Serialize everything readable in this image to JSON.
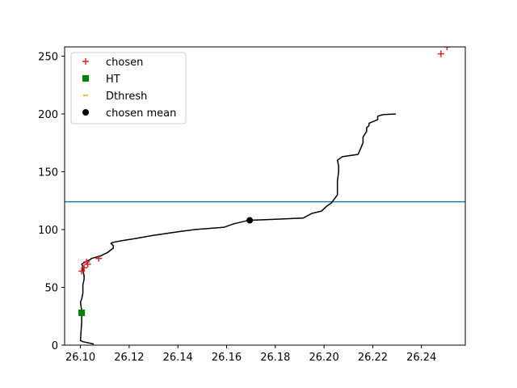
{
  "chart_data": {
    "type": "line",
    "title": "",
    "xlabel": "",
    "ylabel": "",
    "xlim": [
      26.0935,
      26.258
    ],
    "ylim": [
      0,
      258
    ],
    "xticks": [
      "26.10",
      "26.12",
      "26.14",
      "26.16",
      "26.18",
      "26.20",
      "26.22",
      "26.24"
    ],
    "xtick_values": [
      26.1,
      26.12,
      26.14,
      26.16,
      26.18,
      26.2,
      26.22,
      26.24
    ],
    "yticks": [
      "0",
      "50",
      "100",
      "150",
      "200",
      "250"
    ],
    "ytick_values": [
      0,
      50,
      100,
      150,
      200,
      250
    ],
    "grid": false,
    "legend_position": "upper-left",
    "legend": [
      {
        "label": "chosen",
        "marker": "plus",
        "color": "#d62728"
      },
      {
        "label": "HT",
        "marker": "square",
        "color": "#008000"
      },
      {
        "label": "Dthresh",
        "marker": "hline",
        "color": "#ffa500"
      },
      {
        "label": "chosen mean",
        "marker": "circle",
        "color": "#000000"
      }
    ],
    "profile": {
      "color": "#000000",
      "x": [
        26.1055,
        26.101,
        26.1,
        26.1005,
        26.1005,
        26.1,
        26.1005,
        26.101,
        26.101,
        26.1015,
        26.1015,
        26.101,
        26.101,
        26.1005,
        26.102,
        26.104,
        26.1045,
        26.108,
        26.111,
        26.1135,
        26.1135,
        26.1125,
        26.1135,
        26.116,
        26.122,
        26.13,
        26.14,
        26.147,
        26.159,
        26.163,
        26.168,
        26.1695,
        26.176,
        26.1915,
        26.195,
        26.199,
        26.2,
        26.201,
        26.203,
        26.2055,
        26.2055,
        26.206,
        26.206,
        26.2055,
        26.2075,
        26.214,
        26.215,
        26.216,
        26.216,
        26.2175,
        26.2175,
        26.2185,
        26.2185,
        26.222,
        26.222,
        26.2235,
        26.2245,
        26.2295
      ],
      "y": [
        1,
        3,
        4,
        20,
        30,
        37,
        40,
        45,
        52,
        57,
        60,
        65,
        68,
        70,
        72,
        74,
        75,
        77,
        80,
        84,
        86,
        88,
        89,
        90,
        92,
        95,
        98,
        100,
        102,
        105,
        107.5,
        108,
        108.5,
        110,
        114,
        116,
        118,
        120,
        123,
        130,
        142,
        150,
        155,
        160,
        163,
        165,
        170,
        175,
        180,
        185,
        188,
        190,
        192,
        195,
        198,
        199,
        199.5,
        200
      ]
    },
    "chosen": {
      "color": "#d62728",
      "x": [
        26.1005,
        26.1015,
        26.1025,
        26.103,
        26.1075,
        26.248,
        26.2505
      ],
      "y": [
        64,
        67,
        72,
        70,
        75,
        252,
        258
      ]
    },
    "HT": {
      "color": "#008000",
      "x": [
        26.1005
      ],
      "y": [
        28
      ]
    },
    "Dthresh_line": {
      "color": "#1f77b4",
      "y": 124
    },
    "chosen_mean": {
      "color": "#000000",
      "x": [
        26.1695
      ],
      "y": [
        108
      ]
    }
  }
}
